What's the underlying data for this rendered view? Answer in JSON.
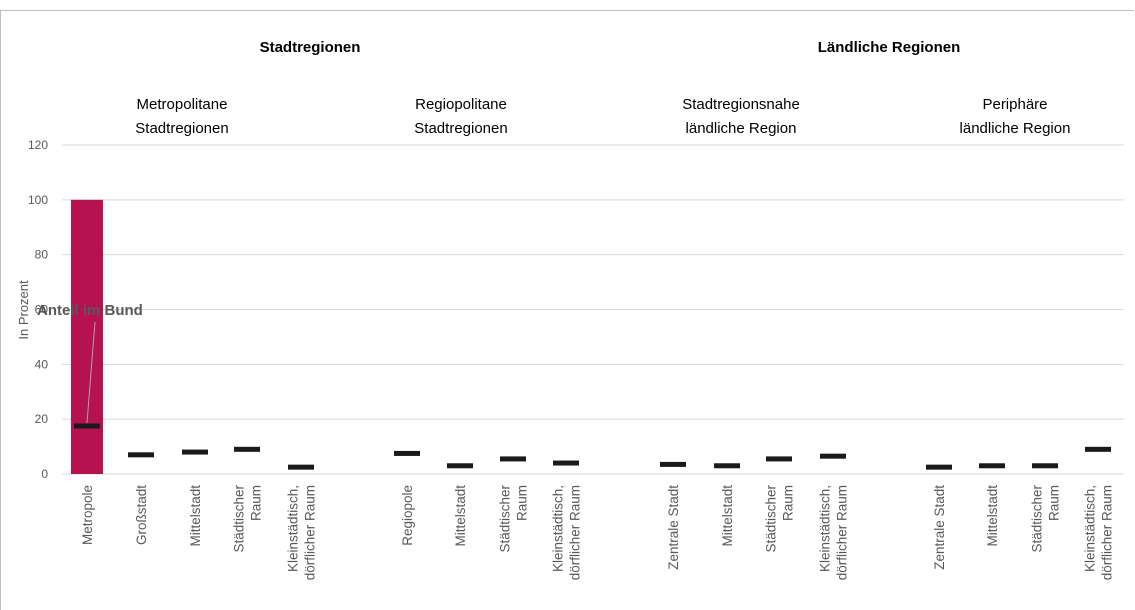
{
  "chart_data": {
    "type": "bar",
    "ylabel": "In Prozent",
    "ylim": [
      0,
      120
    ],
    "yticks": [
      0,
      20,
      40,
      60,
      80,
      100,
      120
    ],
    "grid": true,
    "bar_color": "#b5124f",
    "marker_color": "#1a1a1a",
    "annotation": {
      "text": "Anteil im Bund",
      "category_index": 0,
      "value": 17.5
    },
    "top_groups": [
      {
        "label": "Stadtregionen",
        "subgroups": [
          0,
          1
        ]
      },
      {
        "label": "Ländliche Regionen",
        "subgroups": [
          2,
          3
        ]
      }
    ],
    "subgroups": [
      {
        "label_lines": [
          "Metropolitane",
          "Stadtregionen"
        ]
      },
      {
        "label_lines": [
          "Regiopolitane",
          "Stadtregionen"
        ]
      },
      {
        "label_lines": [
          "Stadtregionsnahe",
          "ländliche Region"
        ]
      },
      {
        "label_lines": [
          "Periphäre",
          "ländliche Region"
        ]
      }
    ],
    "categories": [
      {
        "lines": [
          "Metropole"
        ],
        "subgroup": 0,
        "bar": 100,
        "marker": 17.5
      },
      {
        "lines": [
          "Großstadt"
        ],
        "subgroup": 0,
        "bar": 0,
        "marker": 7
      },
      {
        "lines": [
          "Mittelstadt"
        ],
        "subgroup": 0,
        "bar": 0,
        "marker": 8
      },
      {
        "lines": [
          "Städtischer",
          "Raum"
        ],
        "subgroup": 0,
        "bar": 0,
        "marker": 9
      },
      {
        "lines": [
          "Kleinstädtisch,",
          "dörflicher Raum"
        ],
        "subgroup": 0,
        "bar": 0,
        "marker": 2.5
      },
      {
        "lines": [
          "Regiopole"
        ],
        "subgroup": 1,
        "bar": 0,
        "marker": 7.5
      },
      {
        "lines": [
          "Mittelstadt"
        ],
        "subgroup": 1,
        "bar": 0,
        "marker": 3
      },
      {
        "lines": [
          "Städtischer",
          "Raum"
        ],
        "subgroup": 1,
        "bar": 0,
        "marker": 5.5
      },
      {
        "lines": [
          "Kleinstädtisch,",
          "dörflicher Raum"
        ],
        "subgroup": 1,
        "bar": 0,
        "marker": 4
      },
      {
        "lines": [
          "Zentrale Stadt"
        ],
        "subgroup": 2,
        "bar": 0,
        "marker": 3.5
      },
      {
        "lines": [
          "Mittelstadt"
        ],
        "subgroup": 2,
        "bar": 0,
        "marker": 3
      },
      {
        "lines": [
          "Städtischer",
          "Raum"
        ],
        "subgroup": 2,
        "bar": 0,
        "marker": 5.5
      },
      {
        "lines": [
          "Kleinstädtisch,",
          "dörflicher Raum"
        ],
        "subgroup": 2,
        "bar": 0,
        "marker": 6.5
      },
      {
        "lines": [
          "Zentrale Stadt"
        ],
        "subgroup": 3,
        "bar": 0,
        "marker": 2.5
      },
      {
        "lines": [
          "Mittelstadt"
        ],
        "subgroup": 3,
        "bar": 0,
        "marker": 3
      },
      {
        "lines": [
          "Städtischer",
          "Raum"
        ],
        "subgroup": 3,
        "bar": 0,
        "marker": 3
      },
      {
        "lines": [
          "Kleinstädtisch,",
          "dörflicher Raum"
        ],
        "subgroup": 3,
        "bar": 0,
        "marker": 9
      }
    ]
  }
}
